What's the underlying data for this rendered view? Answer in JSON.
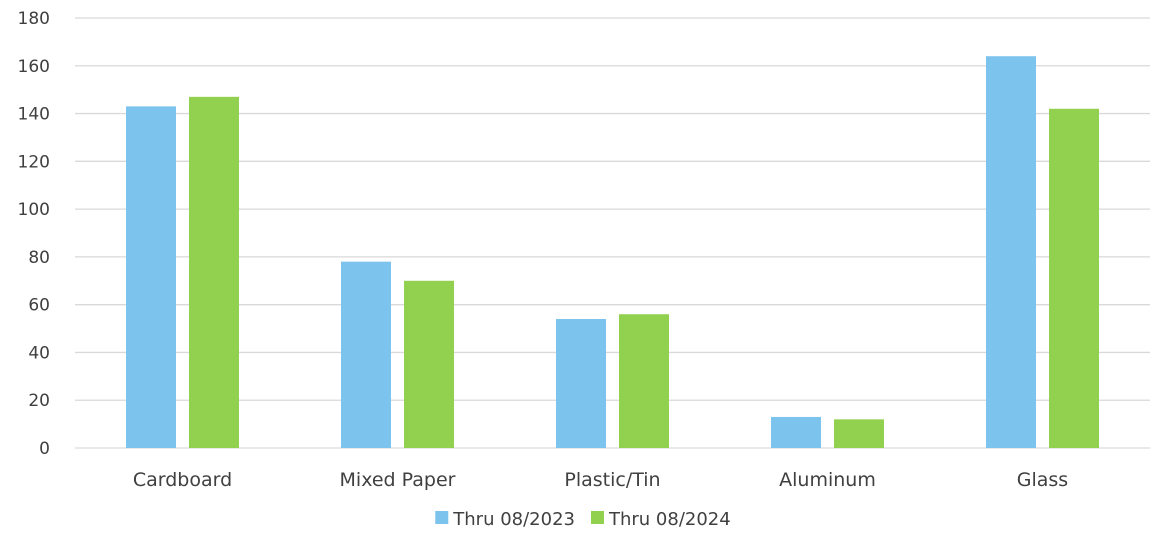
{
  "chart_data": {
    "type": "bar",
    "title": "",
    "xlabel": "",
    "ylabel": "",
    "categories": [
      "Cardboard",
      "Mixed Paper",
      "Plastic/Tin",
      "Aluminum",
      "Glass"
    ],
    "series": [
      {
        "name": "Thru 08/2023",
        "color": "#7CC3EE",
        "values": [
          143,
          78,
          54,
          13,
          164
        ]
      },
      {
        "name": "Thru 08/2024",
        "color": "#92D050",
        "values": [
          147,
          70,
          56,
          12,
          142
        ]
      }
    ],
    "ylim": [
      0,
      180
    ],
    "yticks": [
      0,
      20,
      40,
      60,
      80,
      100,
      120,
      140,
      160,
      180
    ],
    "grid": true,
    "gridColor": "#D9D9D9",
    "legend_position": "bottom"
  }
}
